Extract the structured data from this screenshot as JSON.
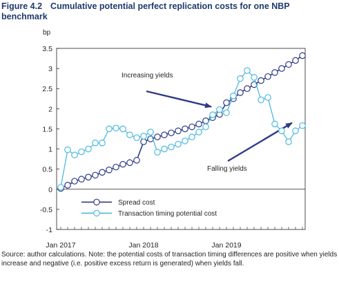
{
  "figure": {
    "number": "Figure 4.2",
    "title": "Cumulative potential perfect replication costs for one NBP benchmark"
  },
  "source_note": "Source: author calculations. Note: the potential costs of transaction timing differences are positive when yields increase and negative (i.e. positive excess return is generated) when yields fall.",
  "chart_data": {
    "type": "line",
    "ylabel": "bp",
    "ylim": [
      -1,
      3.5
    ],
    "yticks": [
      "3.5",
      "3",
      "2.5",
      "2",
      "1.5",
      "1",
      "0.5",
      "0",
      "-0.5",
      "-1"
    ],
    "xlim": [
      0,
      30
    ],
    "xticks": [
      {
        "label": "Jan 2017",
        "x": 0
      },
      {
        "label": "Jan 2018",
        "x": 12
      },
      {
        "label": "Jan 2019",
        "x": 24
      }
    ],
    "grid": false,
    "legend_position": "bottom-left",
    "series": [
      {
        "name": "Spread cost",
        "color": "#2e3a87",
        "x": [
          0,
          1,
          2,
          3,
          4,
          5,
          6,
          7,
          8,
          9,
          10,
          11,
          12,
          13,
          14,
          15,
          16,
          17,
          18,
          19,
          20,
          21,
          22,
          23,
          24,
          25,
          26,
          27,
          28,
          29,
          30,
          31,
          32,
          33,
          34,
          35
        ],
        "values": [
          0.02,
          0.1,
          0.2,
          0.25,
          0.3,
          0.35,
          0.42,
          0.48,
          0.55,
          0.62,
          0.66,
          0.72,
          1.18,
          1.25,
          1.3,
          1.35,
          1.4,
          1.45,
          1.5,
          1.55,
          1.62,
          1.7,
          1.78,
          1.86,
          2.15,
          2.25,
          2.4,
          2.5,
          2.6,
          2.7,
          2.8,
          2.9,
          3.0,
          3.1,
          3.2,
          3.32
        ]
      },
      {
        "name": "Transaction timing potential cost",
        "color": "#4db8e0",
        "x": [
          0,
          1,
          2,
          3,
          4,
          5,
          6,
          7,
          8,
          9,
          10,
          11,
          12,
          13,
          14,
          15,
          16,
          17,
          18,
          19,
          20,
          21,
          22,
          23,
          24,
          25,
          26,
          27,
          28,
          29,
          30,
          31,
          32,
          33,
          34,
          35
        ],
        "values": [
          0.05,
          0.98,
          0.85,
          0.93,
          1.0,
          1.15,
          1.15,
          1.5,
          1.52,
          1.5,
          1.35,
          1.28,
          1.32,
          1.42,
          0.92,
          1.0,
          1.05,
          1.12,
          1.2,
          1.3,
          1.42,
          1.55,
          1.85,
          1.98,
          1.9,
          2.32,
          2.75,
          2.95,
          2.78,
          2.22,
          2.28,
          1.62,
          1.45,
          1.18,
          1.45,
          1.58
        ]
      }
    ],
    "annotations": [
      {
        "text": "Increasing yields",
        "arrow_from": [
          13.5,
          2.5
        ],
        "arrow_to": [
          21.8,
          2.05
        ]
      },
      {
        "text": "Falling yields",
        "arrow_from": [
          27.5,
          0.78
        ],
        "arrow_to": [
          33.5,
          1.65
        ]
      }
    ]
  }
}
